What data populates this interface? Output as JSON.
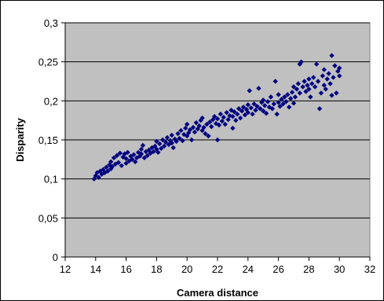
{
  "chart_data": {
    "type": "scatter",
    "title": "",
    "xlabel": "Camera distance",
    "ylabel": "Disparity",
    "xlim": [
      12,
      32
    ],
    "ylim": [
      0,
      0.3
    ],
    "xticks": [
      12,
      14,
      16,
      18,
      20,
      22,
      24,
      26,
      28,
      30,
      32
    ],
    "yticks": [
      0,
      0.05,
      0.1,
      0.15,
      0.2,
      0.25,
      0.3
    ],
    "xtick_labels": [
      "12",
      "14",
      "16",
      "18",
      "20",
      "22",
      "24",
      "26",
      "28",
      "30",
      "32"
    ],
    "ytick_labels": [
      "0",
      "0,05",
      "0,1",
      "0,15",
      "0,2",
      "0,25",
      "0,3"
    ],
    "grid": "horizontal",
    "legend": "none",
    "colors": {
      "plot_background": "#c0c0c0",
      "marker": "#000080",
      "gridline": "#000000"
    },
    "series": [
      {
        "marker": "diamond",
        "points": [
          [
            13.9,
            0.1
          ],
          [
            14.0,
            0.104
          ],
          [
            14.1,
            0.108
          ],
          [
            14.2,
            0.102
          ],
          [
            14.3,
            0.11
          ],
          [
            14.4,
            0.106
          ],
          [
            14.5,
            0.112
          ],
          [
            14.6,
            0.108
          ],
          [
            14.7,
            0.115
          ],
          [
            14.8,
            0.11
          ],
          [
            14.9,
            0.118
          ],
          [
            15.0,
            0.113
          ],
          [
            15.0,
            0.122
          ],
          [
            15.1,
            0.116
          ],
          [
            15.2,
            0.127
          ],
          [
            15.3,
            0.119
          ],
          [
            15.4,
            0.13
          ],
          [
            15.5,
            0.121
          ],
          [
            15.6,
            0.133
          ],
          [
            15.7,
            0.117
          ],
          [
            15.8,
            0.128
          ],
          [
            15.9,
            0.132
          ],
          [
            16.0,
            0.12
          ],
          [
            16.0,
            0.126
          ],
          [
            16.1,
            0.134
          ],
          [
            16.2,
            0.123
          ],
          [
            16.3,
            0.129
          ],
          [
            16.4,
            0.125
          ],
          [
            16.5,
            0.131
          ],
          [
            16.6,
            0.122
          ],
          [
            16.7,
            0.127
          ],
          [
            16.8,
            0.134
          ],
          [
            16.9,
            0.129
          ],
          [
            17.0,
            0.138
          ],
          [
            17.0,
            0.132
          ],
          [
            17.1,
            0.143
          ],
          [
            17.2,
            0.127
          ],
          [
            17.3,
            0.135
          ],
          [
            17.4,
            0.13
          ],
          [
            17.5,
            0.137
          ],
          [
            17.6,
            0.133
          ],
          [
            17.7,
            0.14
          ],
          [
            17.8,
            0.135
          ],
          [
            17.9,
            0.142
          ],
          [
            18.0,
            0.138
          ],
          [
            18.0,
            0.148
          ],
          [
            18.1,
            0.134
          ],
          [
            18.2,
            0.145
          ],
          [
            18.3,
            0.139
          ],
          [
            18.4,
            0.15
          ],
          [
            18.5,
            0.142
          ],
          [
            18.6,
            0.147
          ],
          [
            18.7,
            0.153
          ],
          [
            18.8,
            0.144
          ],
          [
            18.9,
            0.149
          ],
          [
            19.0,
            0.146
          ],
          [
            19.0,
            0.156
          ],
          [
            19.1,
            0.14
          ],
          [
            19.2,
            0.151
          ],
          [
            19.3,
            0.148
          ],
          [
            19.4,
            0.158
          ],
          [
            19.5,
            0.152
          ],
          [
            19.6,
            0.162
          ],
          [
            19.7,
            0.149
          ],
          [
            19.8,
            0.157
          ],
          [
            19.9,
            0.165
          ],
          [
            20.0,
            0.155
          ],
          [
            20.0,
            0.17
          ],
          [
            20.1,
            0.159
          ],
          [
            20.2,
            0.163
          ],
          [
            20.3,
            0.15
          ],
          [
            20.4,
            0.166
          ],
          [
            20.5,
            0.16
          ],
          [
            20.6,
            0.172
          ],
          [
            20.7,
            0.164
          ],
          [
            20.8,
            0.168
          ],
          [
            20.9,
            0.175
          ],
          [
            21.0,
            0.162
          ],
          [
            21.0,
            0.178
          ],
          [
            21.1,
            0.166
          ],
          [
            21.2,
            0.158
          ],
          [
            21.3,
            0.17
          ],
          [
            21.4,
            0.155
          ],
          [
            21.5,
            0.173
          ],
          [
            21.6,
            0.167
          ],
          [
            21.7,
            0.176
          ],
          [
            21.8,
            0.18
          ],
          [
            21.9,
            0.171
          ],
          [
            22.0,
            0.15
          ],
          [
            22.0,
            0.177
          ],
          [
            22.1,
            0.169
          ],
          [
            22.2,
            0.183
          ],
          [
            22.3,
            0.174
          ],
          [
            22.4,
            0.179
          ],
          [
            22.5,
            0.17
          ],
          [
            22.6,
            0.185
          ],
          [
            22.7,
            0.176
          ],
          [
            22.8,
            0.181
          ],
          [
            22.9,
            0.188
          ],
          [
            23.0,
            0.165
          ],
          [
            23.0,
            0.18
          ],
          [
            23.1,
            0.186
          ],
          [
            23.2,
            0.175
          ],
          [
            23.3,
            0.183
          ],
          [
            23.4,
            0.19
          ],
          [
            23.5,
            0.178
          ],
          [
            23.6,
            0.187
          ],
          [
            23.7,
            0.192
          ],
          [
            23.8,
            0.182
          ],
          [
            23.9,
            0.189
          ],
          [
            24.0,
            0.195
          ],
          [
            24.0,
            0.185
          ],
          [
            24.1,
            0.213
          ],
          [
            24.2,
            0.191
          ],
          [
            24.3,
            0.183
          ],
          [
            24.4,
            0.196
          ],
          [
            24.5,
            0.188
          ],
          [
            24.6,
            0.193
          ],
          [
            24.7,
            0.216
          ],
          [
            24.8,
            0.19
          ],
          [
            24.9,
            0.198
          ],
          [
            25.0,
            0.187
          ],
          [
            25.0,
            0.201
          ],
          [
            25.1,
            0.194
          ],
          [
            25.2,
            0.184
          ],
          [
            25.3,
            0.199
          ],
          [
            25.4,
            0.192
          ],
          [
            25.5,
            0.205
          ],
          [
            25.6,
            0.19
          ],
          [
            25.7,
            0.196
          ],
          [
            25.8,
            0.225
          ],
          [
            25.9,
            0.183
          ],
          [
            26.0,
            0.198
          ],
          [
            26.0,
            0.208
          ],
          [
            26.1,
            0.193
          ],
          [
            26.2,
            0.202
          ],
          [
            26.3,
            0.196
          ],
          [
            26.4,
            0.205
          ],
          [
            26.5,
            0.199
          ],
          [
            26.6,
            0.208
          ],
          [
            26.7,
            0.192
          ],
          [
            26.8,
            0.203
          ],
          [
            26.9,
            0.211
          ],
          [
            27.0,
            0.197
          ],
          [
            27.0,
            0.218
          ],
          [
            27.1,
            0.205
          ],
          [
            27.2,
            0.215
          ],
          [
            27.3,
            0.222
          ],
          [
            27.4,
            0.21
          ],
          [
            27.5,
            0.25
          ],
          [
            27.6,
            0.218
          ],
          [
            27.7,
            0.225
          ],
          [
            27.8,
            0.212
          ],
          [
            27.9,
            0.22
          ],
          [
            28.0,
            0.228
          ],
          [
            28.0,
            0.215
          ],
          [
            28.1,
            0.205
          ],
          [
            28.2,
            0.222
          ],
          [
            28.3,
            0.23
          ],
          [
            28.4,
            0.218
          ],
          [
            28.5,
            0.247
          ],
          [
            28.6,
            0.225
          ],
          [
            28.7,
            0.19
          ],
          [
            28.8,
            0.21
          ],
          [
            28.9,
            0.232
          ],
          [
            29.0,
            0.22
          ],
          [
            29.0,
            0.24
          ],
          [
            29.1,
            0.215
          ],
          [
            29.2,
            0.228
          ],
          [
            29.3,
            0.235
          ],
          [
            29.4,
            0.222
          ],
          [
            29.5,
            0.258
          ],
          [
            29.6,
            0.23
          ],
          [
            29.7,
            0.245
          ],
          [
            29.8,
            0.21
          ],
          [
            29.9,
            0.238
          ],
          [
            30.0,
            0.232
          ],
          [
            30.0,
            0.242
          ],
          [
            29.5,
            0.207
          ],
          [
            27.4,
            0.247
          ]
        ]
      }
    ]
  }
}
